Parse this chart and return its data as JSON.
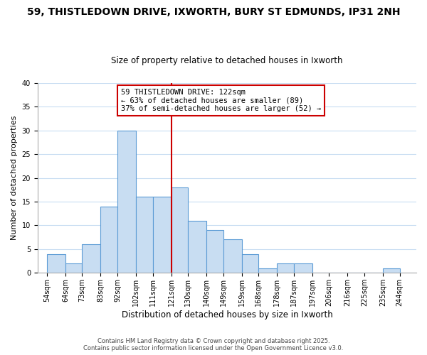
{
  "title": "59, THISTLEDOWN DRIVE, IXWORTH, BURY ST EDMUNDS, IP31 2NH",
  "subtitle": "Size of property relative to detached houses in Ixworth",
  "xlabel": "Distribution of detached houses by size in Ixworth",
  "ylabel": "Number of detached properties",
  "bar_color": "#c8ddf2",
  "bar_edge_color": "#5b9bd5",
  "bin_labels": [
    "54sqm",
    "64sqm",
    "73sqm",
    "83sqm",
    "92sqm",
    "102sqm",
    "111sqm",
    "121sqm",
    "130sqm",
    "140sqm",
    "149sqm",
    "159sqm",
    "168sqm",
    "178sqm",
    "187sqm",
    "197sqm",
    "206sqm",
    "216sqm",
    "225sqm",
    "235sqm",
    "244sqm"
  ],
  "bin_edges": [
    54,
    64,
    73,
    83,
    92,
    102,
    111,
    121,
    130,
    140,
    149,
    159,
    168,
    178,
    187,
    197,
    206,
    216,
    225,
    235,
    244
  ],
  "counts": [
    4,
    2,
    6,
    14,
    30,
    16,
    16,
    18,
    11,
    9,
    7,
    4,
    1,
    2,
    2,
    0,
    0,
    0,
    0,
    1
  ],
  "vline_x": 121,
  "vline_color": "#cc0000",
  "ylim": [
    0,
    40
  ],
  "yticks": [
    0,
    5,
    10,
    15,
    20,
    25,
    30,
    35,
    40
  ],
  "annotation_title": "59 THISTLEDOWN DRIVE: 122sqm",
  "annotation_line1": "← 63% of detached houses are smaller (89)",
  "annotation_line2": "37% of semi-detached houses are larger (52) →",
  "annotation_box_color": "#ffffff",
  "annotation_box_edge": "#cc0000",
  "footer1": "Contains HM Land Registry data © Crown copyright and database right 2025.",
  "footer2": "Contains public sector information licensed under the Open Government Licence v3.0.",
  "background_color": "#ffffff",
  "grid_color": "#c8ddf2",
  "title_fontsize": 10,
  "subtitle_fontsize": 8.5,
  "xlabel_fontsize": 8.5,
  "ylabel_fontsize": 8,
  "tick_fontsize": 7,
  "annot_fontsize": 7.5,
  "footer_fontsize": 6
}
